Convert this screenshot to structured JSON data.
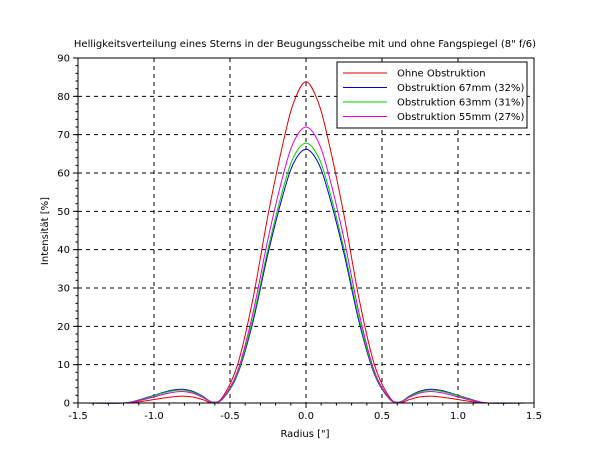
{
  "chart_data": {
    "type": "line",
    "title": "Helligkeitsverteilung eines Sterns in der Beugungsscheibe mit und ohne Fangspiegel (8\" f/6)",
    "xlabel": "Radius [\"]",
    "ylabel": "Intensität [%]",
    "xlim": [
      -1.5,
      1.5
    ],
    "ylim": [
      0,
      90
    ],
    "x_ticks": [
      "-1.5",
      "-1.0",
      "-0.5",
      "0.0",
      "0.5",
      "1.0",
      "1.5"
    ],
    "x_tick_values": [
      -1.5,
      -1.0,
      -0.5,
      0.0,
      0.5,
      1.0,
      1.5
    ],
    "y_ticks": [
      "0",
      "10",
      "20",
      "30",
      "40",
      "50",
      "60",
      "70",
      "80",
      "90"
    ],
    "y_tick_values": [
      0,
      10,
      20,
      30,
      40,
      50,
      60,
      70,
      80,
      90
    ],
    "grid": true,
    "legend_position": "top-right",
    "series": [
      {
        "name": "Ohne Obstruktion",
        "color": "#e00000",
        "x": [
          -1.45,
          -1.2,
          -1.1,
          -1.0,
          -0.9,
          -0.82,
          -0.75,
          -0.68,
          -0.62,
          -0.55,
          -0.45,
          -0.35,
          -0.25,
          -0.15,
          -0.08,
          0.0,
          0.08,
          0.15,
          0.25,
          0.35,
          0.45,
          0.55,
          0.62,
          0.68,
          0.75,
          0.82,
          0.9,
          1.0,
          1.1,
          1.2,
          1.45
        ],
        "values": [
          0.0,
          0.0,
          0.3,
          0.9,
          1.5,
          1.8,
          1.6,
          0.9,
          0.1,
          1.5,
          10.0,
          27.0,
          49.0,
          68.0,
          78.5,
          83.8,
          78.5,
          68.0,
          49.0,
          27.0,
          10.0,
          1.5,
          0.1,
          0.9,
          1.6,
          1.8,
          1.5,
          0.9,
          0.3,
          0.0,
          0.0
        ]
      },
      {
        "name": "Obstruktion 67mm (32%)",
        "color": "#0000cc",
        "x": [
          -1.45,
          -1.2,
          -1.1,
          -1.0,
          -0.9,
          -0.82,
          -0.75,
          -0.68,
          -0.62,
          -0.55,
          -0.45,
          -0.35,
          -0.25,
          -0.15,
          -0.08,
          0.0,
          0.08,
          0.15,
          0.25,
          0.35,
          0.45,
          0.55,
          0.62,
          0.68,
          0.75,
          0.82,
          0.9,
          1.0,
          1.1,
          1.2,
          1.45
        ],
        "values": [
          0.0,
          0.0,
          0.8,
          2.0,
          3.2,
          3.6,
          3.1,
          1.8,
          0.3,
          1.0,
          7.5,
          21.0,
          39.0,
          54.5,
          62.7,
          66.2,
          62.7,
          54.5,
          39.0,
          21.0,
          7.5,
          1.0,
          0.3,
          1.8,
          3.1,
          3.6,
          3.2,
          2.0,
          0.8,
          0.0,
          0.0
        ]
      },
      {
        "name": "Obstruktion 63mm (31%)",
        "color": "#00cc00",
        "x": [
          -1.45,
          -1.2,
          -1.1,
          -1.0,
          -0.9,
          -0.82,
          -0.75,
          -0.68,
          -0.62,
          -0.55,
          -0.45,
          -0.35,
          -0.25,
          -0.15,
          -0.08,
          0.0,
          0.08,
          0.15,
          0.25,
          0.35,
          0.45,
          0.55,
          0.62,
          0.68,
          0.75,
          0.82,
          0.9,
          1.0,
          1.1,
          1.2,
          1.45
        ],
        "values": [
          0.0,
          0.0,
          0.7,
          1.9,
          3.0,
          3.4,
          2.9,
          1.7,
          0.3,
          1.1,
          7.8,
          21.8,
          40.2,
          56.0,
          64.3,
          67.8,
          64.3,
          56.0,
          40.2,
          21.8,
          7.8,
          1.1,
          0.3,
          1.7,
          2.9,
          3.4,
          3.0,
          1.9,
          0.7,
          0.0,
          0.0
        ]
      },
      {
        "name": "Obstruktion 55mm (27%)",
        "color": "#dd00dd",
        "x": [
          -1.45,
          -1.2,
          -1.1,
          -1.0,
          -0.9,
          -0.82,
          -0.75,
          -0.68,
          -0.62,
          -0.55,
          -0.45,
          -0.35,
          -0.25,
          -0.15,
          -0.08,
          0.0,
          0.08,
          0.15,
          0.25,
          0.35,
          0.45,
          0.55,
          0.62,
          0.68,
          0.75,
          0.82,
          0.9,
          1.0,
          1.1,
          1.2,
          1.45
        ],
        "values": [
          0.0,
          0.0,
          0.6,
          1.6,
          2.6,
          3.0,
          2.6,
          1.5,
          0.2,
          1.2,
          8.3,
          23.3,
          42.8,
          59.5,
          68.2,
          72.0,
          68.2,
          59.5,
          42.8,
          23.3,
          8.3,
          1.2,
          0.2,
          1.5,
          2.6,
          3.0,
          2.6,
          1.6,
          0.6,
          0.0,
          0.0
        ]
      }
    ]
  }
}
